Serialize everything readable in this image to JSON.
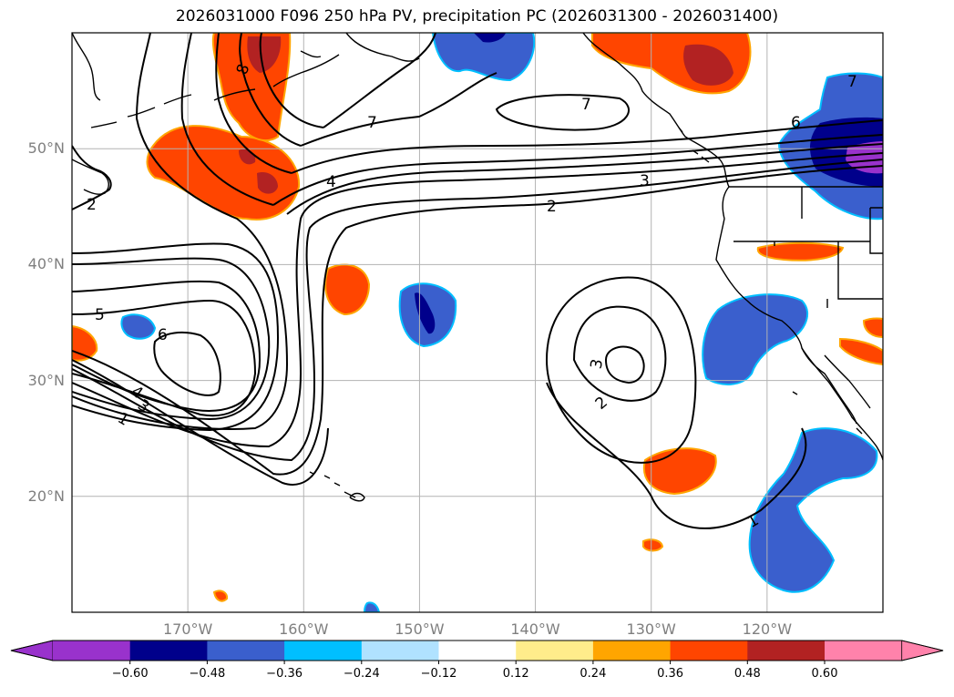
{
  "title": "2026031000 F096 250 hPa PV, precipitation PC (2026031300 - 2026031400)",
  "map": {
    "extent": {
      "lon_min": 180,
      "lon_max": 250,
      "lat_min": 10,
      "lat_max": 60
    },
    "lat_ticks": [
      {
        "value": 20,
        "label": "20°N"
      },
      {
        "value": 30,
        "label": "30°N"
      },
      {
        "value": 40,
        "label": "40°N"
      },
      {
        "value": 50,
        "label": "50°N"
      }
    ],
    "lon_ticks": [
      {
        "value": 190,
        "label": "170°W"
      },
      {
        "value": 200,
        "label": "160°W"
      },
      {
        "value": 210,
        "label": "150°W"
      },
      {
        "value": 220,
        "label": "140°W"
      },
      {
        "value": 230,
        "label": "130°W"
      },
      {
        "value": 240,
        "label": "120°W"
      }
    ],
    "gridlines": true,
    "pv_contour_labels": [
      "8",
      "7",
      "7",
      "7",
      "6",
      "6",
      "5",
      "4",
      "4",
      "3",
      "3",
      "3",
      "2",
      "2",
      "2",
      "1",
      "1"
    ]
  },
  "colorbar": {
    "colors": [
      "#9932cc",
      "#00008b",
      "#3a5fcd",
      "#00bfff",
      "#b0e2ff",
      "#ffffff",
      "#ffec8b",
      "#ffa500",
      "#ff4500",
      "#b22222",
      "#ff82ab"
    ],
    "labels": [
      "−0.60",
      "−0.48",
      "−0.36",
      "−0.24",
      "−0.12",
      "0.12",
      "0.24",
      "0.36",
      "0.48",
      "0.60"
    ],
    "extend": "both"
  }
}
